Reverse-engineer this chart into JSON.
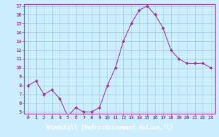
{
  "x": [
    0,
    1,
    2,
    3,
    4,
    5,
    6,
    7,
    8,
    9,
    10,
    11,
    12,
    13,
    14,
    15,
    16,
    17,
    18,
    19,
    20,
    21,
    22,
    23
  ],
  "y": [
    8,
    8.5,
    7,
    7.5,
    6.5,
    4.5,
    5.5,
    5,
    5,
    5.5,
    8,
    10,
    13,
    15,
    16.5,
    17,
    16,
    14.5,
    12,
    11,
    10.5,
    10.5,
    10.5,
    10
  ],
  "ylim": [
    5,
    17
  ],
  "xlim": [
    -0.5,
    23.5
  ],
  "yticks": [
    5,
    6,
    7,
    8,
    9,
    10,
    11,
    12,
    13,
    14,
    15,
    16,
    17
  ],
  "xticks": [
    0,
    1,
    2,
    3,
    4,
    5,
    6,
    7,
    8,
    9,
    10,
    11,
    12,
    13,
    14,
    15,
    16,
    17,
    18,
    19,
    20,
    21,
    22,
    23
  ],
  "xlabel": "Windchill (Refroidissement éolien,°C)",
  "line_color": "#993399",
  "marker_color": "#993399",
  "bg_color": "#cceeff",
  "grid_color": "#99cccc",
  "spine_color": "#993399",
  "tick_label_color": "#993399",
  "xlabel_color": "#ffffff",
  "xlabel_bg": "#993399",
  "tick_fontsize": 5,
  "xlabel_fontsize": 6
}
